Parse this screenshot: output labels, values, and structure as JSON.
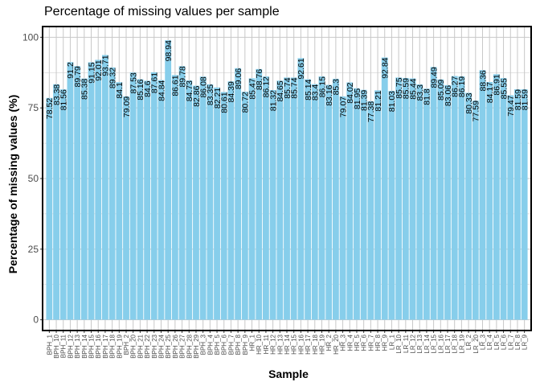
{
  "chart_data": {
    "type": "bar",
    "title": "Percentage of missing values per sample",
    "xlabel": "Sample",
    "ylabel": "Percentage of missing values (%)",
    "ylim": [
      0,
      100
    ],
    "yticks": [
      0,
      25,
      50,
      75,
      100
    ],
    "bar_color": "#87ceeb",
    "grid_color": "#c8c8c8",
    "panel_border_color": "#000000",
    "grid": true,
    "categories": [
      "BPH_1",
      "BPH_10",
      "BPH_11",
      "BPH_12",
      "BPH_13",
      "BPH_14",
      "BPH_15",
      "BPH_16",
      "BPH_17",
      "BPH_18",
      "BPH_19",
      "BPH_2",
      "BPH_20",
      "BPH_21",
      "BPH_22",
      "BPH_23",
      "BPH_24",
      "BPH_25",
      "BPH_26",
      "BPH_27",
      "BPH_28",
      "BPH_29",
      "BPH_3",
      "BPH_4",
      "BPH_5",
      "BPH_6",
      "BPH_7",
      "BPH_8",
      "BPH_9",
      "HR_1",
      "HR_10",
      "HR_11",
      "HR_12",
      "HR_13",
      "HR_14",
      "HR_15",
      "HR_16",
      "HR_17",
      "HR_18",
      "HR_19",
      "HR_2",
      "HR_20",
      "HR_3",
      "HR_4",
      "HR_5",
      "HR_6",
      "HR_7",
      "HR_8",
      "HR_9",
      "LR_1",
      "LR_10",
      "LR_11",
      "LR_12",
      "LR_13",
      "LR_14",
      "LR_15",
      "LR_16",
      "LR_17",
      "LR_18",
      "LR_19",
      "LR_2",
      "LR_20",
      "LR_3",
      "LR_4",
      "LR_5",
      "LR_6",
      "LR_7",
      "LR_8",
      "LR_9"
    ],
    "values": [
      78.52,
      83.38,
      81.56,
      91.2,
      89.79,
      85.38,
      91.15,
      92.01,
      93.71,
      89.32,
      84.1,
      79.09,
      87.53,
      85.16,
      84.6,
      87.61,
      84.84,
      98.94,
      86.61,
      89.78,
      84.73,
      82.86,
      86.08,
      83.35,
      82.21,
      80.61,
      84.39,
      89.06,
      80.72,
      85.47,
      88.76,
      86.12,
      81.32,
      84.65,
      85.74,
      85.74,
      92.61,
      85.14,
      83.4,
      86.15,
      83.16,
      85.3,
      79.07,
      84.02,
      81.95,
      81.39,
      77.38,
      81.21,
      92.84,
      81.03,
      85.75,
      85.59,
      85.44,
      83.3,
      81.8,
      89.49,
      85.09,
      83.06,
      86.27,
      86.19,
      80.33,
      77.59,
      88.36,
      84.17,
      86.91,
      85.55,
      79.47,
      81.59,
      81.59
    ],
    "labels": [
      "78.52",
      "83.38",
      "81.56",
      "91.2",
      "89.79",
      "85.38",
      "91.15",
      "92.01",
      "93.71",
      "89.32",
      "84.1",
      "79.09",
      "87.53",
      "85.16",
      "84.6",
      "87.61",
      "84.84",
      "98.94",
      "86.61",
      "89.78",
      "84.73",
      "82.86",
      "86.08",
      "83.35",
      "82.21",
      "80.61",
      "84.39",
      "89.06",
      "80.72",
      "85.47",
      "88.76",
      "86.12",
      "81.32",
      "84.65",
      "85.74",
      "85.74",
      "92.61",
      "85.14",
      "83.4",
      "86.15",
      "83.16",
      "85.3",
      "79.07",
      "84.02",
      "81.95",
      "81.39",
      "77.38",
      "81.21",
      "92.84",
      "81.03",
      "85.75",
      "85.59",
      "85.44",
      "83.3",
      "81.8",
      "89.49",
      "85.09",
      "83.06",
      "86.27",
      "86.19",
      "80.33",
      "77.59",
      "88.36",
      "84.17",
      "86.91",
      "85.55",
      "79.47",
      "81.59",
      "81.59"
    ]
  }
}
